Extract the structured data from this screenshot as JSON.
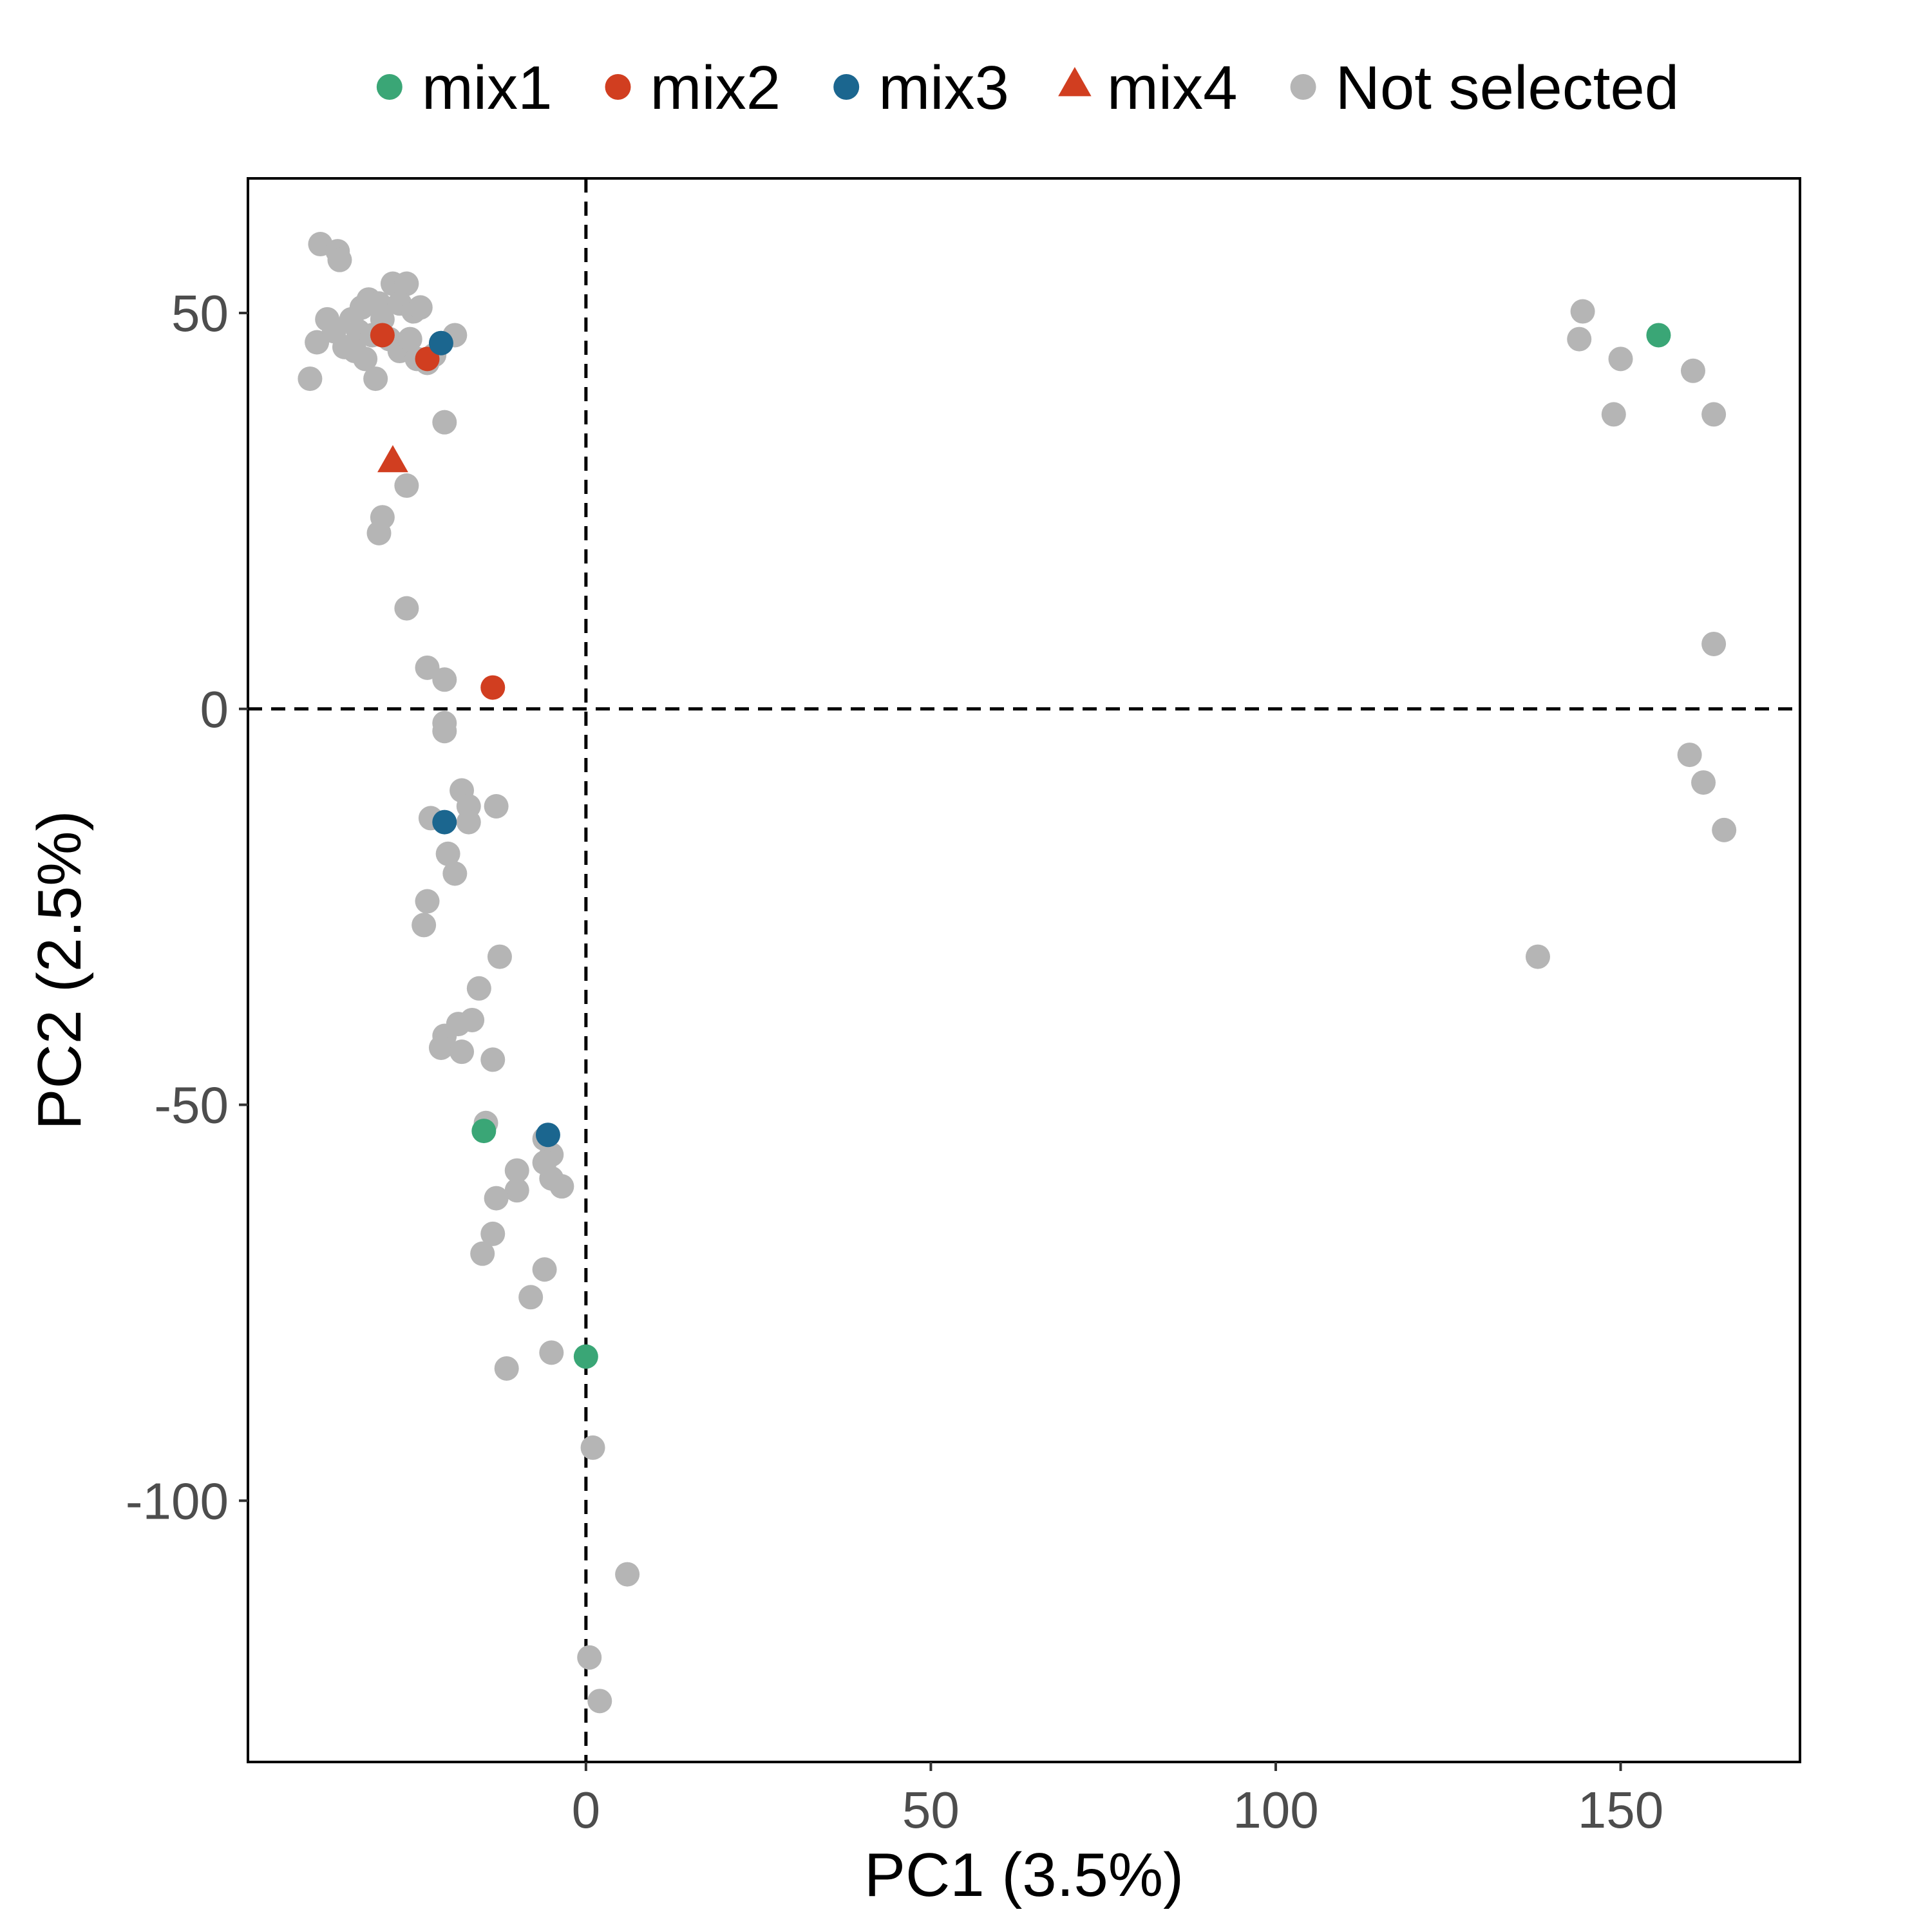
{
  "chart_data": {
    "type": "scatter",
    "title": "",
    "xlabel": "PC1 (3.5%)",
    "ylabel": "PC2 (2.5%)",
    "xlim": [
      -49,
      176
    ],
    "ylim": [
      -133,
      67
    ],
    "x_ticks": [
      0,
      50,
      100,
      150
    ],
    "y_ticks": [
      -100,
      -50,
      0,
      50
    ],
    "x_tick_labels": [
      "0",
      "50",
      "100",
      "150"
    ],
    "y_tick_labels": [
      "-100",
      "-50",
      "0",
      "50"
    ],
    "reference_lines": {
      "x": 0,
      "y": 0,
      "style": "dashed"
    },
    "grid": false,
    "legend_position": "top",
    "legend": [
      {
        "label": "mix1",
        "shape": "circle",
        "color": "#3aa676"
      },
      {
        "label": "mix2",
        "shape": "circle",
        "color": "#d13e20"
      },
      {
        "label": "mix3",
        "shape": "circle",
        "color": "#1b668f"
      },
      {
        "label": "mix4",
        "shape": "triangle",
        "color": "#d13e20"
      },
      {
        "label": "Not selected",
        "shape": "circle",
        "color": "#b5b5b5"
      }
    ],
    "series": [
      {
        "name": "Not selected",
        "shape": "circle",
        "color": "#b5b5b5",
        "points": [
          [
            -38.5,
            58.7
          ],
          [
            -36,
            57.8
          ],
          [
            -35.7,
            56.7
          ],
          [
            -39,
            46.3
          ],
          [
            -37.5,
            49.2
          ],
          [
            -36.5,
            47.7
          ],
          [
            -35,
            45.7
          ],
          [
            -34,
            49.2
          ],
          [
            -33,
            47.7
          ],
          [
            -32.5,
            50.7
          ],
          [
            -31.5,
            51.7
          ],
          [
            -30,
            51.2
          ],
          [
            -29.5,
            49.2
          ],
          [
            -28,
            53.7
          ],
          [
            -26,
            53.7
          ],
          [
            -27,
            51.2
          ],
          [
            -25,
            50.2
          ],
          [
            -24,
            50.7
          ],
          [
            -28.5,
            46.7
          ],
          [
            -27,
            45.2
          ],
          [
            -25.5,
            46.7
          ],
          [
            -24.5,
            44.2
          ],
          [
            -23,
            43.7
          ],
          [
            -22,
            44.7
          ],
          [
            -31,
            47.2
          ],
          [
            -32,
            44.2
          ],
          [
            -33.5,
            45.2
          ],
          [
            -30.5,
            41.7
          ],
          [
            -40,
            41.7
          ],
          [
            -19,
            47.2
          ],
          [
            -20.5,
            36.2
          ],
          [
            -26,
            28.2
          ],
          [
            -29.5,
            24.2
          ],
          [
            -30,
            22.2
          ],
          [
            -26,
            12.7
          ],
          [
            -23,
            5.2
          ],
          [
            -20.5,
            3.7
          ],
          [
            -20.5,
            -1.8
          ],
          [
            -20.5,
            -2.8
          ],
          [
            -18,
            -10.3
          ],
          [
            -17,
            -12.3
          ],
          [
            -17,
            -14.3
          ],
          [
            -13,
            -12.3
          ],
          [
            -22.5,
            -13.8
          ],
          [
            -20,
            -18.3
          ],
          [
            -19,
            -20.8
          ],
          [
            -23,
            -24.3
          ],
          [
            -23.5,
            -27.3
          ],
          [
            -12.5,
            -31.3
          ],
          [
            -15.5,
            -35.3
          ],
          [
            -20.5,
            -41.3
          ],
          [
            -21,
            -42.8
          ],
          [
            -18.5,
            -39.8
          ],
          [
            -16.5,
            -39.3
          ],
          [
            -18,
            -43.3
          ],
          [
            -13.5,
            -44.3
          ],
          [
            -14.5,
            -52.3
          ],
          [
            -6,
            -54.3
          ],
          [
            -5,
            -56.3
          ],
          [
            -6,
            -57.3
          ],
          [
            -5,
            -59.3
          ],
          [
            -3.5,
            -60.3
          ],
          [
            -10,
            -58.3
          ],
          [
            -10,
            -60.8
          ],
          [
            -13,
            -61.8
          ],
          [
            -13.5,
            -66.3
          ],
          [
            -15,
            -68.8
          ],
          [
            -6,
            -70.8
          ],
          [
            -8,
            -74.3
          ],
          [
            -5,
            -81.3
          ],
          [
            -11.5,
            -83.3
          ],
          [
            1,
            -93.3
          ],
          [
            6,
            -109.3
          ],
          [
            0.5,
            -119.8
          ],
          [
            2,
            -125.3
          ],
          [
            144.5,
            50.2
          ],
          [
            144,
            46.7
          ],
          [
            150,
            44.2
          ],
          [
            149,
            37.2
          ],
          [
            160.5,
            42.7
          ],
          [
            163.5,
            37.2
          ],
          [
            163.5,
            8.2
          ],
          [
            160,
            -5.8
          ],
          [
            162,
            -9.3
          ],
          [
            165,
            -15.3
          ],
          [
            138,
            -31.3
          ]
        ]
      },
      {
        "name": "mix1",
        "shape": "circle",
        "color": "#3aa676",
        "points": [
          [
            155.5,
            47.2
          ],
          [
            -14.8,
            -53.3
          ],
          [
            0,
            -81.8
          ]
        ]
      },
      {
        "name": "mix2",
        "shape": "circle",
        "color": "#d13e20",
        "points": [
          [
            -23,
            44.2
          ],
          [
            -13.5,
            2.7
          ],
          [
            -29.5,
            47.2
          ]
        ]
      },
      {
        "name": "mix3",
        "shape": "circle",
        "color": "#1b668f",
        "points": [
          [
            -21,
            46.2
          ],
          [
            -20.5,
            -14.3
          ],
          [
            -5.5,
            -53.8
          ]
        ]
      },
      {
        "name": "mix4",
        "shape": "triangle",
        "color": "#d13e20",
        "points": [
          [
            -28,
            31.2
          ]
        ]
      }
    ]
  }
}
